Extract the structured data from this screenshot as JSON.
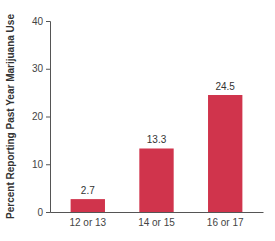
{
  "chart_data": {
    "type": "bar",
    "y_label": "Percent Reporting Past Year Marijuana Use",
    "categories": [
      "12 or 13",
      "14 or 15",
      "16 or 17"
    ],
    "values": [
      2.7,
      13.3,
      24.5
    ],
    "color": "#d0344c",
    "ylim": [
      0,
      40
    ],
    "yticks": [
      0,
      10,
      20,
      30,
      40
    ],
    "grid": false,
    "data_labels": true
  }
}
